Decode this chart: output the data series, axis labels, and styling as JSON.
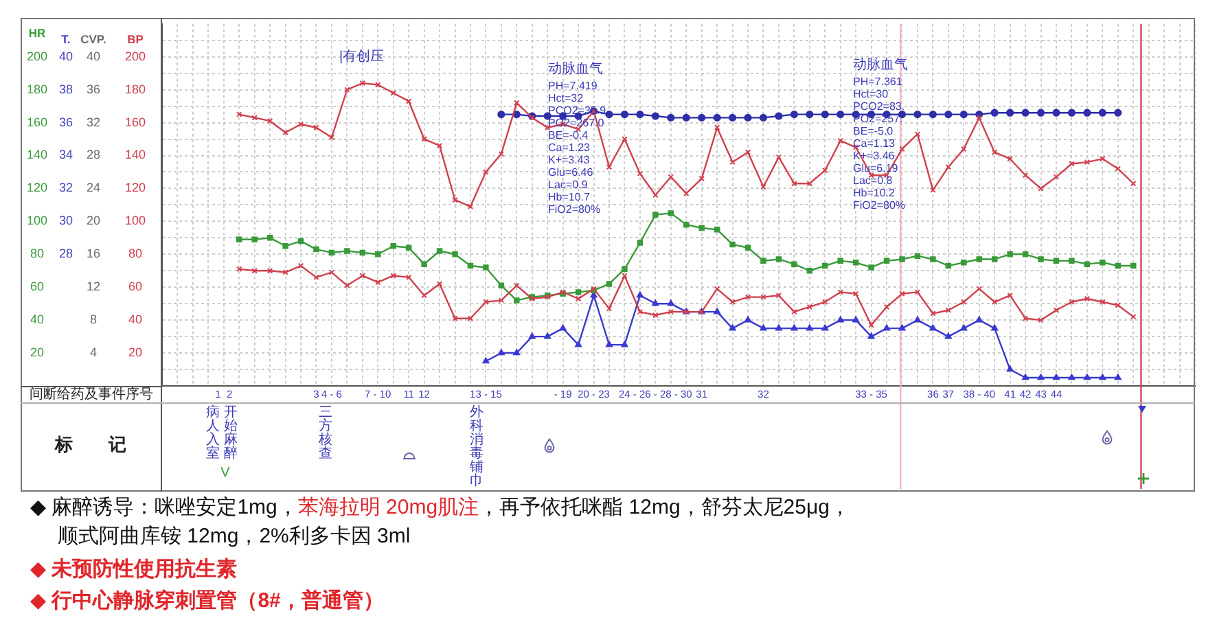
{
  "chart_data": {
    "type": "line",
    "xlabel": "间断给药及事件序号",
    "ylabel": "BP",
    "y2label": "CVP.",
    "y3label": "T.",
    "categories": [
      null,
      null,
      null,
      null,
      "1  2",
      null,
      null,
      null,
      null,
      null,
      "3",
      "4 - 6",
      null,
      null,
      "7 - 10",
      null,
      "11",
      "12",
      null,
      null,
      null,
      "13 - 15",
      null,
      null,
      null,
      null,
      "- 19",
      null,
      "20 - 23",
      null,
      null,
      null,
      "24 - 26 - 28 - 30",
      null,
      null,
      "31",
      null,
      null,
      null,
      "32",
      null,
      null,
      null,
      null,
      null,
      null,
      "33 - 35",
      null,
      null,
      null,
      "36",
      "37",
      null,
      "38 - 40",
      null,
      "41",
      "42",
      "43",
      "44",
      null,
      null,
      null,
      null,
      null,
      null,
      null,
      null,
      null
    ],
    "series": [
      {
        "color": "#d0404e",
        "axis": "y",
        "marker": "cross",
        "values": [
          null,
          null,
          null,
          null,
          null,
          165,
          163,
          161,
          154,
          159,
          157,
          151,
          180,
          184,
          183,
          178,
          173,
          150,
          146,
          113,
          109,
          130,
          141,
          172,
          163,
          157,
          159,
          156,
          167,
          133,
          150,
          129,
          116,
          127,
          117,
          126,
          157,
          136,
          142,
          121,
          139,
          123,
          123,
          131,
          149,
          145,
          128,
          128,
          144,
          153,
          119,
          133,
          144,
          163,
          142,
          138,
          128,
          120,
          127,
          135,
          136,
          138,
          132,
          123,
          null,
          null,
          null,
          null
        ]
      },
      {
        "color": "#d0404e",
        "axis": "y",
        "marker": "cross",
        "values": [
          null,
          null,
          null,
          null,
          null,
          71,
          70,
          70,
          69,
          73,
          66,
          69,
          61,
          67,
          63,
          67,
          66,
          55,
          62,
          41,
          41,
          51,
          52,
          61,
          53,
          54,
          57,
          53,
          59,
          47,
          67,
          45,
          43,
          45,
          45,
          45,
          59,
          51,
          54,
          54,
          55,
          45,
          48,
          51,
          57,
          56,
          37,
          48,
          56,
          57,
          44,
          46,
          51,
          59,
          51,
          55,
          41,
          40,
          46,
          51,
          53,
          51,
          49,
          42,
          null,
          null,
          null,
          null
        ]
      },
      {
        "color": "#3a9a3a",
        "axis": "y",
        "marker": "square",
        "values": [
          null,
          null,
          null,
          null,
          null,
          89,
          89,
          90,
          85,
          88,
          83,
          81,
          82,
          81,
          80,
          85,
          84,
          74,
          82,
          80,
          73,
          72,
          61,
          52,
          54,
          55,
          56,
          57,
          58,
          62,
          71,
          87,
          104,
          105,
          98,
          96,
          95,
          86,
          84,
          76,
          77,
          74,
          70,
          73,
          76,
          75,
          72,
          76,
          77,
          79,
          77,
          73,
          75,
          77,
          77,
          80,
          80,
          77,
          76,
          76,
          74,
          75,
          73,
          73,
          null,
          null,
          null,
          null
        ]
      },
      {
        "color": "#3a3ad0",
        "axis": "y2",
        "marker": "triangle",
        "values": [
          null,
          null,
          null,
          null,
          null,
          null,
          null,
          null,
          null,
          null,
          null,
          null,
          null,
          null,
          null,
          null,
          null,
          null,
          null,
          null,
          null,
          3,
          4,
          4,
          6,
          6,
          7,
          5,
          11,
          5,
          5,
          11,
          10,
          10,
          9,
          9,
          9,
          7,
          8,
          7,
          7,
          7,
          7,
          7,
          8,
          8,
          6,
          7,
          7,
          8,
          7,
          6,
          7,
          8,
          7,
          2,
          1,
          1,
          1,
          1,
          1,
          1,
          1,
          null,
          null,
          null,
          null,
          null
        ]
      },
      {
        "color": "#2e2ea8",
        "axis": "y3",
        "marker": "circle",
        "values": [
          null,
          null,
          null,
          null,
          null,
          null,
          null,
          null,
          null,
          null,
          null,
          null,
          null,
          null,
          null,
          null,
          null,
          null,
          null,
          null,
          null,
          null,
          36.5,
          36.5,
          36.4,
          36.4,
          36.4,
          36.4,
          36.7,
          36.5,
          36.5,
          36.5,
          36.4,
          36.3,
          36.3,
          36.3,
          36.3,
          36.3,
          36.3,
          36.3,
          36.4,
          36.5,
          36.5,
          36.5,
          36.5,
          36.5,
          36.5,
          36.5,
          36.5,
          36.5,
          36.5,
          36.5,
          36.5,
          36.5,
          36.6,
          36.6,
          36.6,
          36.6,
          36.6,
          36.6,
          36.6,
          36.6,
          36.6,
          null,
          null,
          null,
          null,
          null
        ]
      }
    ],
    "ylim": [
      0,
      220
    ],
    "yticks": [
      {
        "value": 10,
        "label": null
      },
      20,
      {
        "value": 30,
        "label": null
      },
      40,
      {
        "value": 50,
        "label": null
      },
      60,
      {
        "value": 70,
        "label": null
      },
      80,
      {
        "value": 90,
        "label": null
      },
      100,
      {
        "value": 110,
        "label": null
      },
      120,
      {
        "value": 130,
        "label": null
      },
      140,
      {
        "value": 150,
        "label": null
      },
      160,
      {
        "value": 170,
        "label": null
      },
      180,
      {
        "value": 190,
        "label": null
      },
      200,
      {
        "value": 210,
        "label": null
      }
    ],
    "y2lim": [
      0,
      44
    ],
    "y2ticks": [
      4,
      8,
      12,
      16,
      20,
      24,
      28,
      32,
      36,
      40
    ],
    "y3lim": [
      20,
      42
    ],
    "y3ticks": [
      28,
      30,
      32,
      34,
      36,
      38,
      40
    ],
    "grid": true,
    "annotations": [
      "HR",
      "|有创压",
      "动脉血气",
      "PH=7.419\nHct=32\nPCO2=35.9\nPO2=267.0\nBE=-0.4\nCa=1.23\nK+=3.43\nGlu=6.46\nLac=0.9\nHb=10.7\nFiO2=80%",
      "动脉血气",
      "PH=7.361\nHct=30\nPCO2=83.\nPO2=257.\nBE=-5.0\nCa=1.13\nK+=3.46\nGlu=6.19\nLac=0.8\nHb=10.2\nFiO2=80%",
      "标记",
      "病人入室",
      "开始麻醉",
      "V",
      "三方核查",
      "外科消毒铺巾",
      "◆ 麻醉诱导：咪唑安定1mg，",
      "苯海拉明 20mg肌注",
      "，再予依托咪酯 12mg，舒芬太尼25μg，",
      "顺式阿曲库铵 12mg，2%利多卡因 3ml",
      "◆ 未预防性使用抗生素",
      "◆ 行中心静脉穿刺置管（8#，普通管）",
      "20",
      "40",
      "60",
      "80",
      "100",
      "120",
      "140",
      "160",
      "180",
      "200"
    ]
  }
}
